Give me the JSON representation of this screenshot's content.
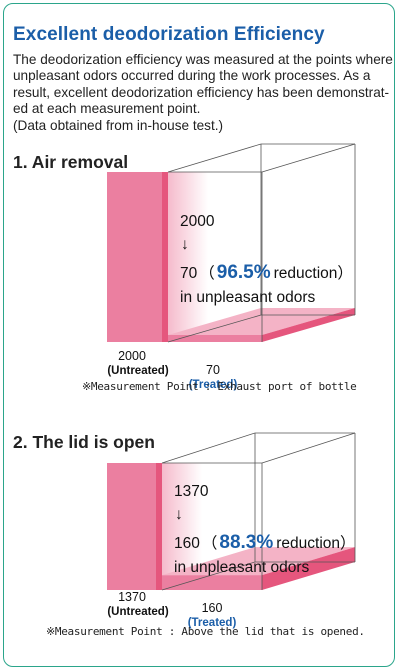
{
  "header": {
    "title": "Excellent deodorization Efficiency",
    "intro_lines": [
      "The deodorization efficiency was measured at the points where",
      "unpleasant odors occurred during the work processes. As a",
      "result, excellent deodorization efficiency has been demonstrat-",
      "ed at each measurement point.",
      "(Data obtained from in-house test.)"
    ]
  },
  "chart_data": [
    {
      "type": "bar",
      "title": "1. Air removal",
      "categories": [
        "Untreated",
        "Treated"
      ],
      "values": [
        2000,
        70
      ],
      "value_labels": [
        "2000",
        "70"
      ],
      "category_labels": [
        "(Untreated)",
        "(Treated)"
      ],
      "annotation": {
        "from": "2000",
        "arrow": "↓",
        "to": "70",
        "open": "（",
        "percent": "96.5%",
        "reduction": "reduction）",
        "tail": "in unpleasant odors"
      },
      "note": "※Measurement Point : Exhaust port of bottle"
    },
    {
      "type": "bar",
      "title": "2. The lid is open",
      "categories": [
        "Untreated",
        "Treated"
      ],
      "values": [
        1370,
        160
      ],
      "value_labels": [
        "1370",
        "160"
      ],
      "category_labels": [
        "(Untreated)",
        "(Treated)"
      ],
      "annotation": {
        "from": "1370",
        "arrow": "↓",
        "to": "160",
        "open": "（",
        "percent": "88.3%",
        "reduction": "reduction）",
        "tail": "in unpleasant odors"
      },
      "note": "※Measurement Point : Above the lid that is opened."
    }
  ],
  "colors": {
    "title": "#1b5ea8",
    "border": "#2ba58b",
    "bar_front": "#e5567d",
    "bar_side": "#eb7fa0",
    "bar_top": "#f4b3c6",
    "treated_label": "#1b5ea8"
  }
}
